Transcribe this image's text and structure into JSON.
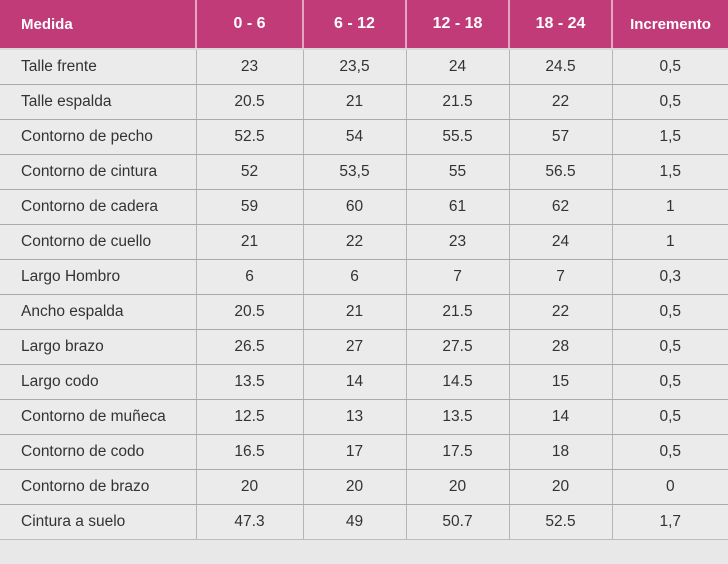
{
  "table": {
    "headers": [
      "Medida",
      "0 - 6",
      "6 - 12",
      "12 - 18",
      "18 - 24",
      "Incremento"
    ],
    "rows": [
      [
        "Talle frente",
        "23",
        "23,5",
        "24",
        "24.5",
        "0,5"
      ],
      [
        "Talle espalda",
        "20.5",
        "21",
        "21.5",
        "22",
        "0,5"
      ],
      [
        "Contorno de pecho",
        "52.5",
        "54",
        "55.5",
        "57",
        "1,5"
      ],
      [
        "Contorno de cintura",
        "52",
        "53,5",
        "55",
        "56.5",
        "1,5"
      ],
      [
        "Contorno de cadera",
        "59",
        "60",
        "61",
        "62",
        "1"
      ],
      [
        "Contorno de cuello",
        "21",
        "22",
        "23",
        "24",
        "1"
      ],
      [
        "Largo Hombro",
        "6",
        "6",
        "7",
        "7",
        "0,3"
      ],
      [
        "Ancho espalda",
        "20.5",
        "21",
        "21.5",
        "22",
        "0,5"
      ],
      [
        "Largo brazo",
        "26.5",
        "27",
        "27.5",
        "28",
        "0,5"
      ],
      [
        "Largo codo",
        "13.5",
        "14",
        "14.5",
        "15",
        "0,5"
      ],
      [
        "Contorno de muñeca",
        "12.5",
        "13",
        "13.5",
        "14",
        "0,5"
      ],
      [
        "Contorno de codo",
        "16.5",
        "17",
        "17.5",
        "18",
        "0,5"
      ],
      [
        "Contorno de brazo",
        "20",
        "20",
        "20",
        "20",
        "0"
      ],
      [
        "Cintura a suelo",
        "47.3",
        "49",
        "50.7",
        "52.5",
        "1,7"
      ]
    ]
  },
  "colors": {
    "header_bg": "#c13b79",
    "header_text": "#ffffff",
    "cell_bg": "#ebebeb",
    "cell_text": "#333333"
  }
}
